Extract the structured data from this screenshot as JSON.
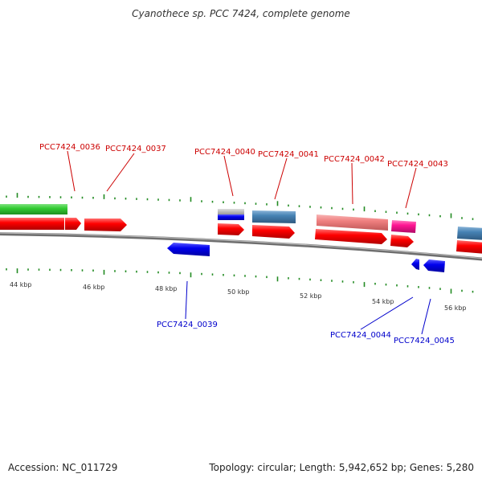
{
  "title": "Cyanothece sp. PCC 7424, complete genome",
  "accession": "Accession: NC_011729",
  "summary": "Topology: circular; Length: 5,942,652 bp; Genes: 5,280",
  "colors": {
    "red": "#ff0000",
    "green": "#33cc33",
    "blue": "#0000ee",
    "steelblue": "#4682b4",
    "salmon": "#f08080",
    "magenta": "#ff1493",
    "grey": "#aaaaaa",
    "tick": "#228b22",
    "backbone": "#888888",
    "forward_label": "#cc0000",
    "reverse_label": "#0000cc"
  },
  "kbp_labels": [
    "44 kbp",
    "46 kbp",
    "48 kbp",
    "50 kbp",
    "52 kbp",
    "54 kbp",
    "56 kbp"
  ],
  "forward_labels": [
    "PCC7424_0036",
    "PCC7424_0037",
    "PCC7424_0040",
    "PCC7424_0041",
    "PCC7424_0042",
    "PCC7424_0043"
  ],
  "reverse_labels": [
    "PCC7424_0039",
    "PCC7424_0044",
    "PCC7424_0045"
  ]
}
